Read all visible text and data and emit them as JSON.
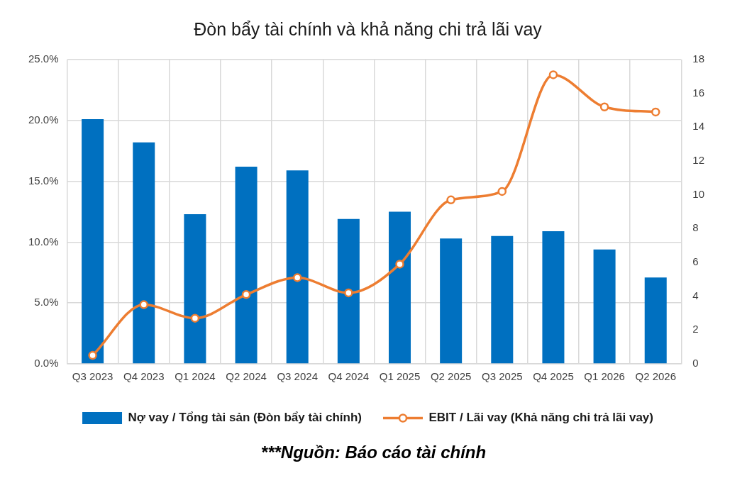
{
  "chart_data": {
    "type": "bar",
    "title": "Đòn bẩy tài chính và khả năng chi trả lãi vay",
    "categories": [
      "Q3 2023",
      "Q4 2023",
      "Q1 2024",
      "Q2 2024",
      "Q3 2024",
      "Q4 2024",
      "Q1 2025",
      "Q2 2025",
      "Q3 2025",
      "Q4 2025",
      "Q1 2026",
      "Q2 2026"
    ],
    "series": [
      {
        "name": "Nợ vay / Tổng tài sản (Đòn bẩy tài chính)",
        "color": "#0070c0",
        "values": [
          20.1,
          18.2,
          12.3,
          16.2,
          15.9,
          11.9,
          12.5,
          10.3,
          10.5,
          10.9,
          9.4,
          7.1
        ]
      },
      {
        "name": "EBIT / Lãi vay (Khả năng chi trả lãi vay)",
        "type": "line",
        "axis": "y2",
        "color": "#ed7d31",
        "values": [
          0.5,
          3.5,
          2.7,
          4.1,
          5.1,
          4.2,
          5.9,
          9.7,
          10.2,
          17.1,
          15.2,
          14.9
        ]
      }
    ],
    "ylim": [
      0,
      25
    ],
    "yticks": [
      {
        "value": 0,
        "label": "0.0%"
      },
      {
        "value": 5,
        "label": "5.0%"
      },
      {
        "value": 10,
        "label": "10.0%"
      },
      {
        "value": 15,
        "label": "15.0%"
      },
      {
        "value": 20,
        "label": "20.0%"
      },
      {
        "value": 25,
        "label": "25.0%"
      }
    ],
    "y2lim": [
      0,
      18
    ],
    "y2ticks": [
      0,
      2,
      4,
      6,
      8,
      10,
      12,
      14,
      16,
      18
    ],
    "grid": true,
    "legend": "bottom",
    "marker": "circle",
    "line_style": "solid",
    "annotations": [
      "***Nguồn: Báo cáo tài chính"
    ]
  }
}
